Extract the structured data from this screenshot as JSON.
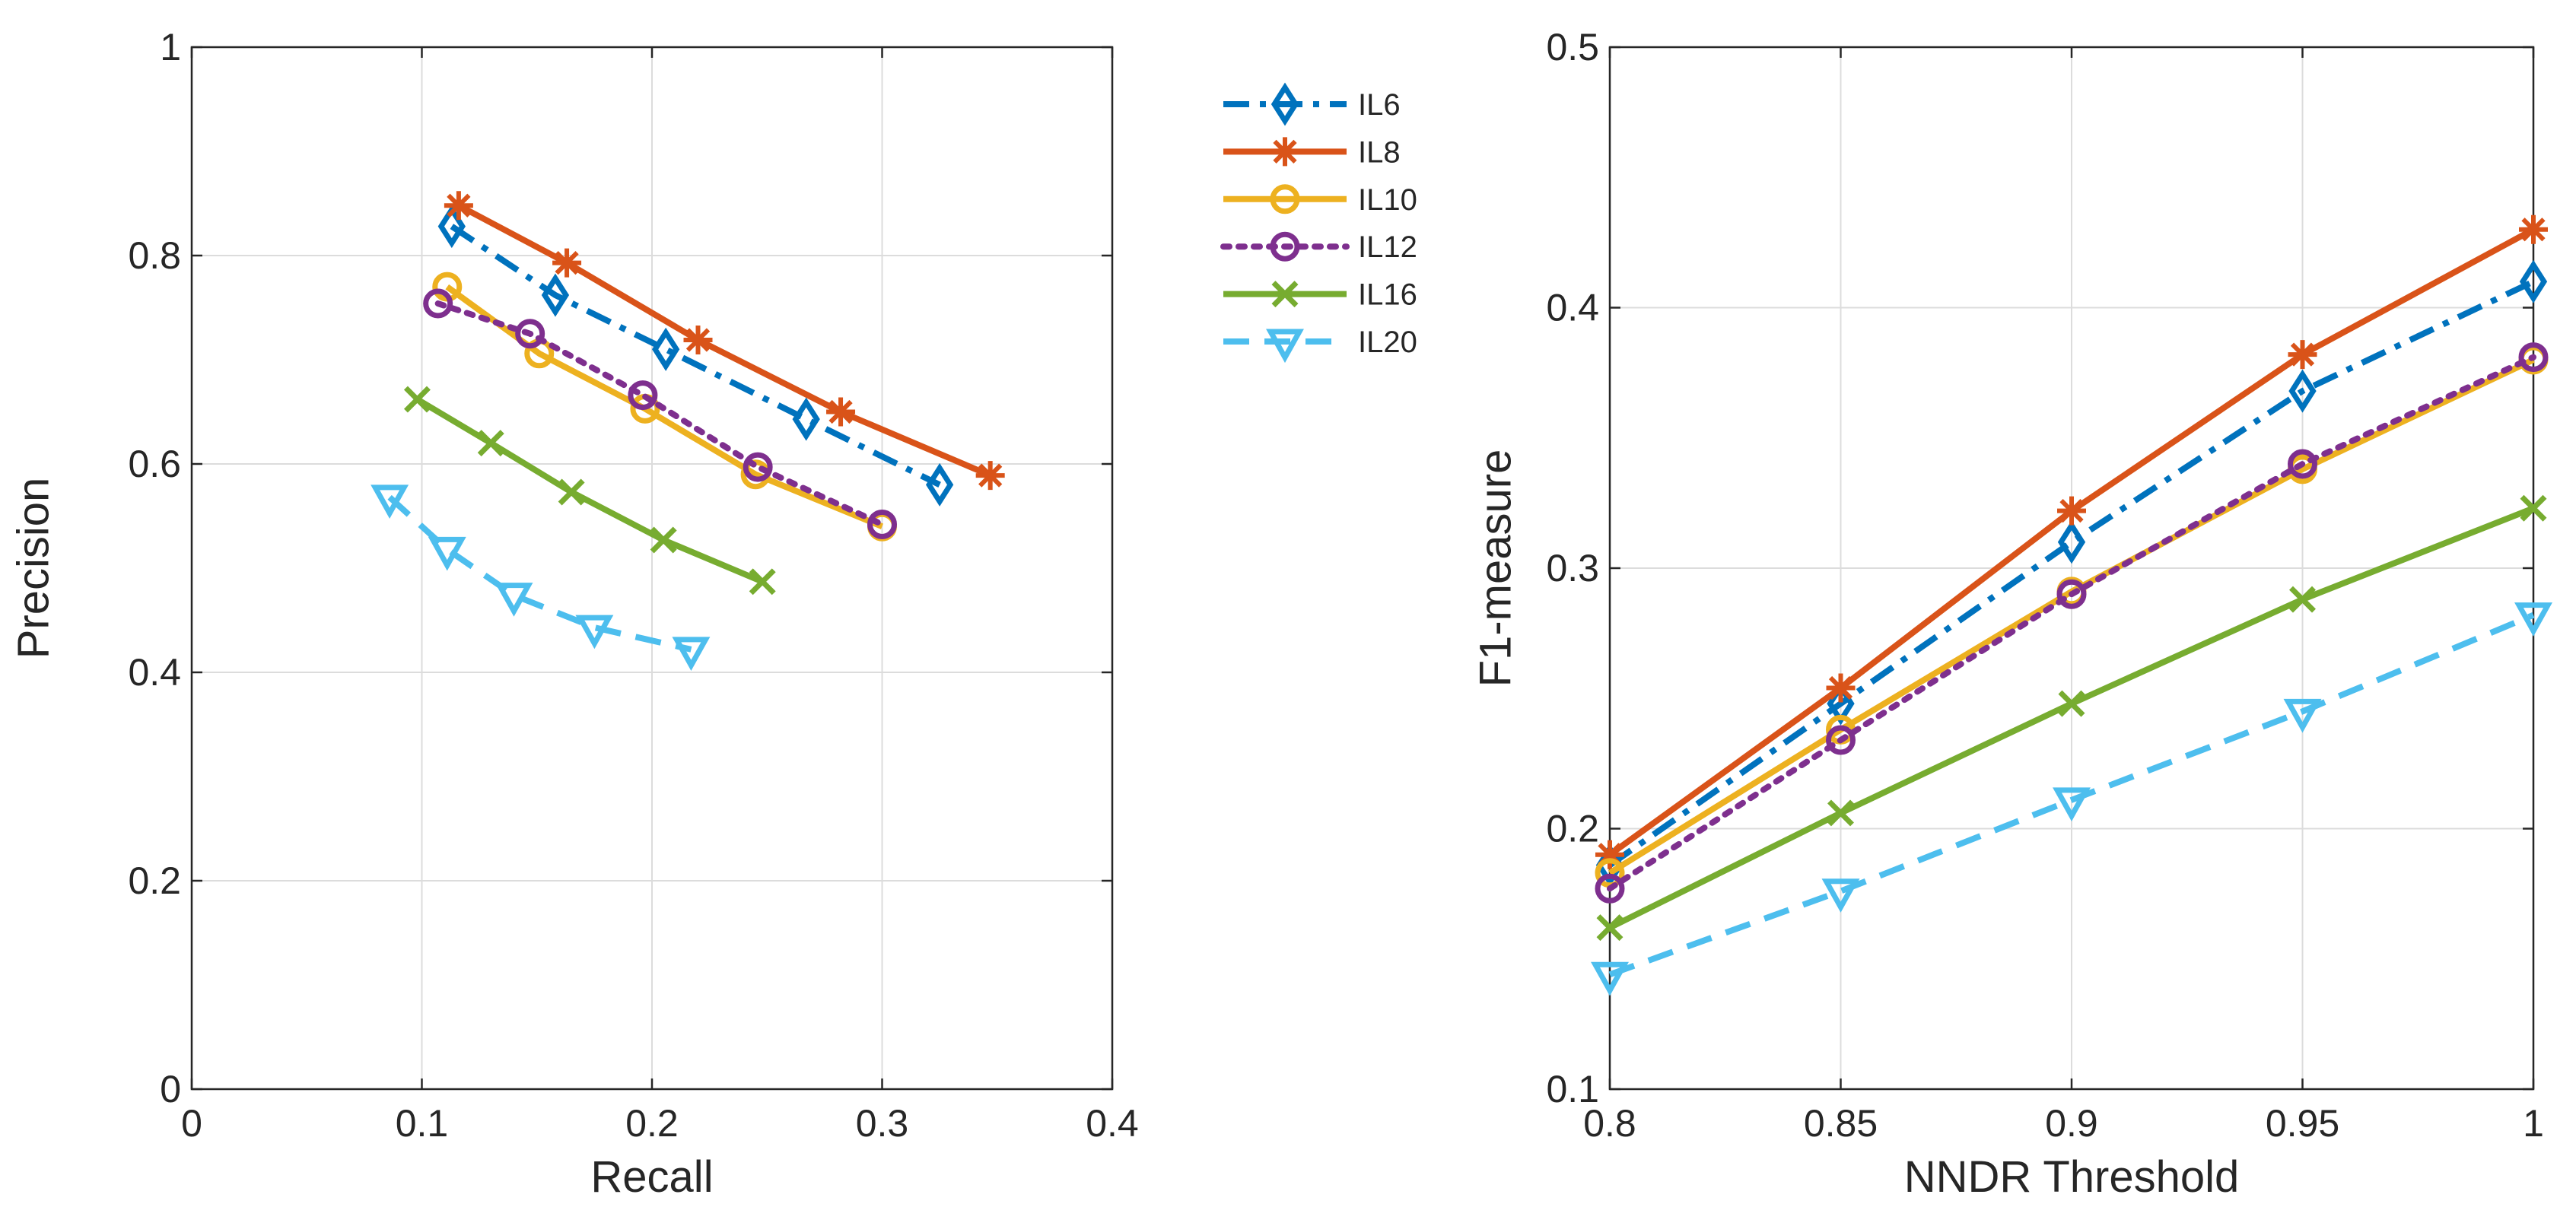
{
  "colors": {
    "IL6": "#0072BD",
    "IL8": "#D95319",
    "IL10": "#EDB120",
    "IL12": "#7E2F8E",
    "IL16": "#77AC30",
    "IL20": "#4DBEEE"
  },
  "legend": [
    "IL6",
    "IL8",
    "IL10",
    "IL12",
    "IL16",
    "IL20"
  ],
  "chart_data": [
    {
      "type": "line",
      "title": "",
      "xlabel": "Recall",
      "ylabel": "Precision",
      "xlim": [
        0,
        0.4
      ],
      "ylim": [
        0,
        1
      ],
      "xticks": [
        0,
        0.1,
        0.2,
        0.3,
        0.4
      ],
      "yticks": [
        0,
        0.2,
        0.4,
        0.6,
        0.8,
        1
      ],
      "xtick_labels": [
        "0",
        "0.1",
        "0.2",
        "0.3",
        "0.4"
      ],
      "ytick_labels": [
        "0",
        "0.2",
        "0.4",
        "0.6",
        "0.8",
        "1"
      ],
      "grid": true,
      "series": [
        {
          "name": "IL6",
          "marker": "diamond",
          "dash": "dashdot",
          "x": [
            0.113,
            0.158,
            0.206,
            0.267,
            0.325
          ],
          "y": [
            0.828,
            0.762,
            0.71,
            0.643,
            0.58
          ]
        },
        {
          "name": "IL8",
          "marker": "star",
          "dash": "solid",
          "x": [
            0.116,
            0.163,
            0.22,
            0.282,
            0.347
          ],
          "y": [
            0.848,
            0.793,
            0.719,
            0.65,
            0.589
          ]
        },
        {
          "name": "IL10",
          "marker": "circle",
          "dash": "solid",
          "x": [
            0.111,
            0.151,
            0.197,
            0.245,
            0.3
          ],
          "y": [
            0.77,
            0.706,
            0.653,
            0.59,
            0.54
          ]
        },
        {
          "name": "IL12",
          "marker": "circle",
          "dash": "dotted",
          "x": [
            0.107,
            0.147,
            0.196,
            0.246,
            0.3
          ],
          "y": [
            0.754,
            0.725,
            0.666,
            0.597,
            0.542
          ]
        },
        {
          "name": "IL16",
          "marker": "x",
          "dash": "solid",
          "x": [
            0.098,
            0.13,
            0.165,
            0.205,
            0.248
          ],
          "y": [
            0.662,
            0.62,
            0.573,
            0.527,
            0.487
          ]
        },
        {
          "name": "IL20",
          "marker": "triangle-down",
          "dash": "dashed",
          "x": [
            0.086,
            0.111,
            0.14,
            0.175,
            0.217
          ],
          "y": [
            0.568,
            0.518,
            0.474,
            0.443,
            0.422
          ]
        }
      ]
    },
    {
      "type": "line",
      "title": "",
      "xlabel": "NNDR Threshold",
      "ylabel": "F1-measure",
      "xlim": [
        0.8,
        1
      ],
      "ylim": [
        0.1,
        0.5
      ],
      "xticks": [
        0.8,
        0.85,
        0.9,
        0.95,
        1
      ],
      "yticks": [
        0.1,
        0.2,
        0.3,
        0.4,
        0.5
      ],
      "xtick_labels": [
        "0.8",
        "0.85",
        "0.9",
        "0.95",
        "1"
      ],
      "ytick_labels": [
        "0.1",
        "0.2",
        "0.3",
        "0.4",
        "0.5"
      ],
      "grid": true,
      "series": [
        {
          "name": "IL6",
          "marker": "diamond",
          "dash": "dashdot",
          "x": [
            0.8,
            0.85,
            0.9,
            0.95,
            1
          ],
          "y": [
            0.186,
            0.248,
            0.31,
            0.368,
            0.41
          ]
        },
        {
          "name": "IL8",
          "marker": "star",
          "dash": "solid",
          "x": [
            0.8,
            0.85,
            0.9,
            0.95,
            1
          ],
          "y": [
            0.19,
            0.254,
            0.322,
            0.382,
            0.43
          ]
        },
        {
          "name": "IL10",
          "marker": "circle",
          "dash": "solid",
          "x": [
            0.8,
            0.85,
            0.9,
            0.95,
            1
          ],
          "y": [
            0.183,
            0.238,
            0.291,
            0.338,
            0.38
          ]
        },
        {
          "name": "IL12",
          "marker": "circle",
          "dash": "dotted",
          "x": [
            0.8,
            0.85,
            0.9,
            0.95,
            1
          ],
          "y": [
            0.177,
            0.234,
            0.29,
            0.34,
            0.381
          ]
        },
        {
          "name": "IL16",
          "marker": "x",
          "dash": "solid",
          "x": [
            0.8,
            0.85,
            0.9,
            0.95,
            1
          ],
          "y": [
            0.162,
            0.206,
            0.248,
            0.288,
            0.323
          ]
        },
        {
          "name": "IL20",
          "marker": "triangle-down",
          "dash": "dashed",
          "x": [
            0.8,
            0.85,
            0.9,
            0.95,
            1
          ],
          "y": [
            0.144,
            0.176,
            0.211,
            0.245,
            0.282
          ]
        }
      ]
    }
  ]
}
